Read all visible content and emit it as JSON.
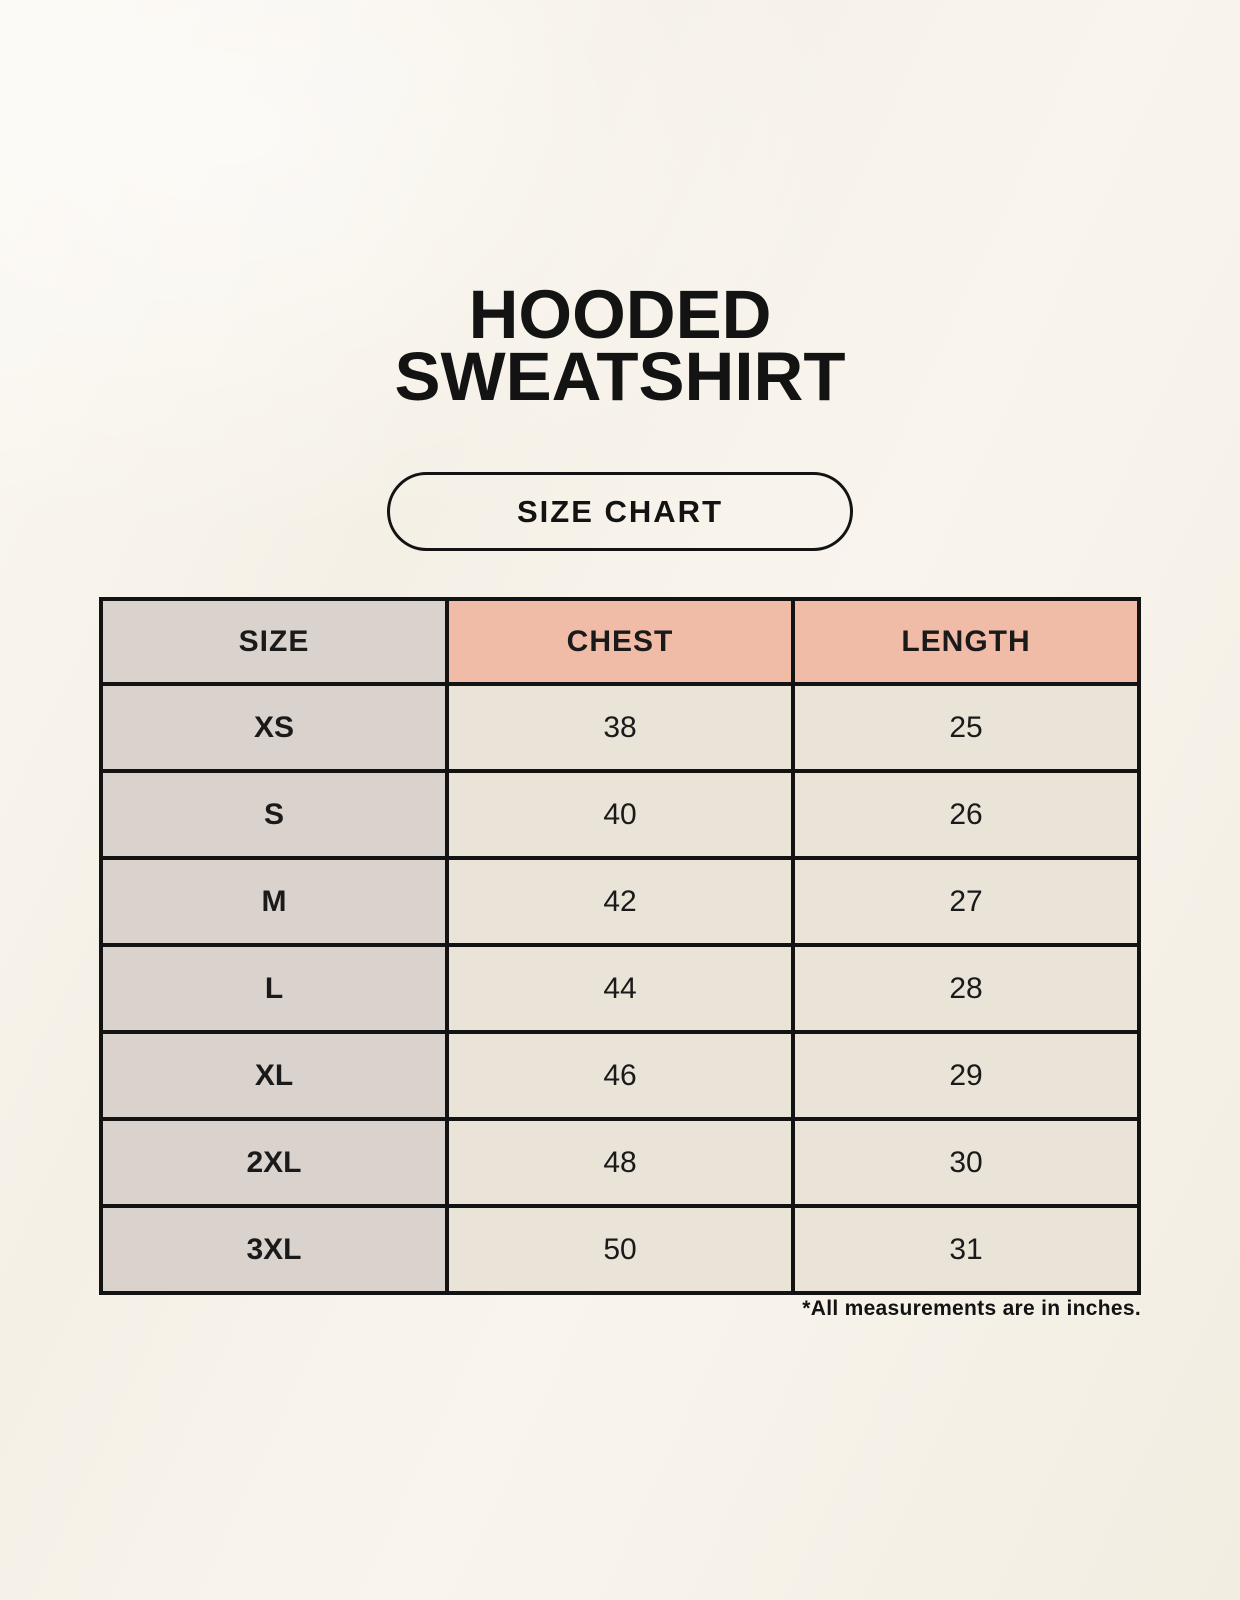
{
  "page": {
    "title_line1": "HOODED",
    "title_line2": "SWEATSHIRT",
    "badge_label": "SIZE CHART",
    "footnote": "*All measurements are in inches."
  },
  "table": {
    "columns": [
      "SIZE",
      "CHEST",
      "LENGTH"
    ],
    "rows": [
      {
        "size": "XS",
        "chest": "38",
        "length": "25"
      },
      {
        "size": "S",
        "chest": "40",
        "length": "26"
      },
      {
        "size": "M",
        "chest": "42",
        "length": "27"
      },
      {
        "size": "L",
        "chest": "44",
        "length": "28"
      },
      {
        "size": "XL",
        "chest": "46",
        "length": "29"
      },
      {
        "size": "2XL",
        "chest": "48",
        "length": "30"
      },
      {
        "size": "3XL",
        "chest": "50",
        "length": "31"
      }
    ]
  },
  "colors": {
    "page_background": "#f8f4ec",
    "header_accent": "#f0bba7",
    "size_column": "#dad3cd",
    "data_cell": "#e9e3d8",
    "table_border": "#131313",
    "text": "#1a1a1a"
  },
  "chart_data": {
    "type": "table",
    "title": "HOODED SWEATSHIRT — SIZE CHART",
    "columns": [
      "SIZE",
      "CHEST",
      "LENGTH"
    ],
    "rows": [
      [
        "XS",
        38,
        25
      ],
      [
        "S",
        40,
        26
      ],
      [
        "M",
        42,
        27
      ],
      [
        "L",
        44,
        28
      ],
      [
        "XL",
        46,
        29
      ],
      [
        "2XL",
        48,
        30
      ],
      [
        "3XL",
        50,
        31
      ]
    ],
    "units": "inches",
    "note": "*All measurements are in inches."
  }
}
